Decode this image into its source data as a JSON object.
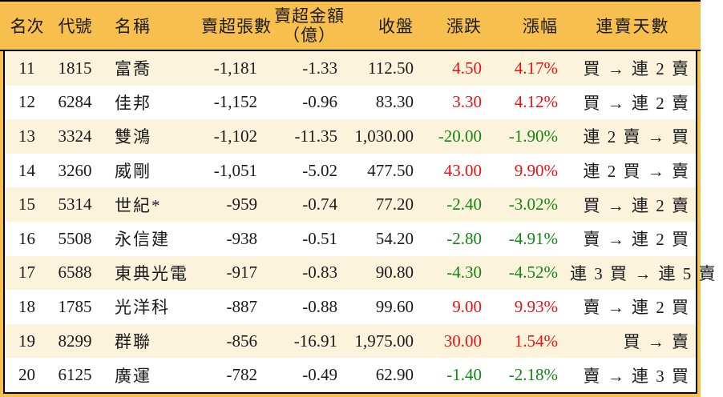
{
  "colors": {
    "frame_and_header_bg": "#f7bf4e",
    "alt_row_bg": "#fcf3dc",
    "row_bg": "#ffffff",
    "up_red": "#ee1111",
    "down_green": "#118611",
    "border": "#000000",
    "text": "#1a1a1a"
  },
  "chart_data": {
    "type": "table",
    "columns": [
      {
        "key": "rank",
        "label": "名次"
      },
      {
        "key": "code",
        "label": "代號"
      },
      {
        "key": "name",
        "label": "名稱"
      },
      {
        "key": "sell_volume",
        "label": "賣超張數"
      },
      {
        "key": "sell_amount",
        "label": "賣超金額",
        "label2": "（億）"
      },
      {
        "key": "close",
        "label": "收盤"
      },
      {
        "key": "change",
        "label": "漲跌"
      },
      {
        "key": "change_pct",
        "label": "漲幅"
      },
      {
        "key": "streak",
        "label": "連賣天數"
      }
    ],
    "rows": [
      {
        "rank": "11",
        "code": "1815",
        "name": "富喬",
        "sell_volume": "-1,181",
        "sell_amount": "-1.33",
        "close": "112.50",
        "change": "4.50",
        "change_pct": "4.17%",
        "trend": "up",
        "streak": "買 → 連 2 賣"
      },
      {
        "rank": "12",
        "code": "6284",
        "name": "佳邦",
        "sell_volume": "-1,152",
        "sell_amount": "-0.96",
        "close": "83.30",
        "change": "3.30",
        "change_pct": "4.12%",
        "trend": "up",
        "streak": "買 → 連 2 賣"
      },
      {
        "rank": "13",
        "code": "3324",
        "name": "雙鴻",
        "sell_volume": "-1,102",
        "sell_amount": "-11.35",
        "close": "1,030.00",
        "change": "-20.00",
        "change_pct": "-1.90%",
        "trend": "down",
        "streak": "連 2 賣 → 買"
      },
      {
        "rank": "14",
        "code": "3260",
        "name": "威剛",
        "sell_volume": "-1,051",
        "sell_amount": "-5.02",
        "close": "477.50",
        "change": "43.00",
        "change_pct": "9.90%",
        "trend": "up",
        "streak": "連 2 買 → 賣"
      },
      {
        "rank": "15",
        "code": "5314",
        "name": "世紀*",
        "sell_volume": "-959",
        "sell_amount": "-0.74",
        "close": "77.20",
        "change": "-2.40",
        "change_pct": "-3.02%",
        "trend": "down",
        "streak": "買 → 連 2 賣"
      },
      {
        "rank": "16",
        "code": "5508",
        "name": "永信建",
        "sell_volume": "-938",
        "sell_amount": "-0.51",
        "close": "54.20",
        "change": "-2.80",
        "change_pct": "-4.91%",
        "trend": "down",
        "streak": "賣 → 連 2 買"
      },
      {
        "rank": "17",
        "code": "6588",
        "name": "東典光電",
        "sell_volume": "-917",
        "sell_amount": "-0.83",
        "close": "90.80",
        "change": "-4.30",
        "change_pct": "-4.52%",
        "trend": "down",
        "streak": "連 3 買 → 連 5 賣"
      },
      {
        "rank": "18",
        "code": "1785",
        "name": "光洋科",
        "sell_volume": "-887",
        "sell_amount": "-0.88",
        "close": "99.60",
        "change": "9.00",
        "change_pct": "9.93%",
        "trend": "up",
        "streak": "賣 → 連 2 買"
      },
      {
        "rank": "19",
        "code": "8299",
        "name": "群聯",
        "sell_volume": "-856",
        "sell_amount": "-16.91",
        "close": "1,975.00",
        "change": "30.00",
        "change_pct": "1.54%",
        "trend": "up",
        "streak": "買 → 賣"
      },
      {
        "rank": "20",
        "code": "6125",
        "name": "廣運",
        "sell_volume": "-782",
        "sell_amount": "-0.49",
        "close": "62.90",
        "change": "-1.40",
        "change_pct": "-2.18%",
        "trend": "down",
        "streak": "賣 → 連 3 買"
      }
    ]
  }
}
